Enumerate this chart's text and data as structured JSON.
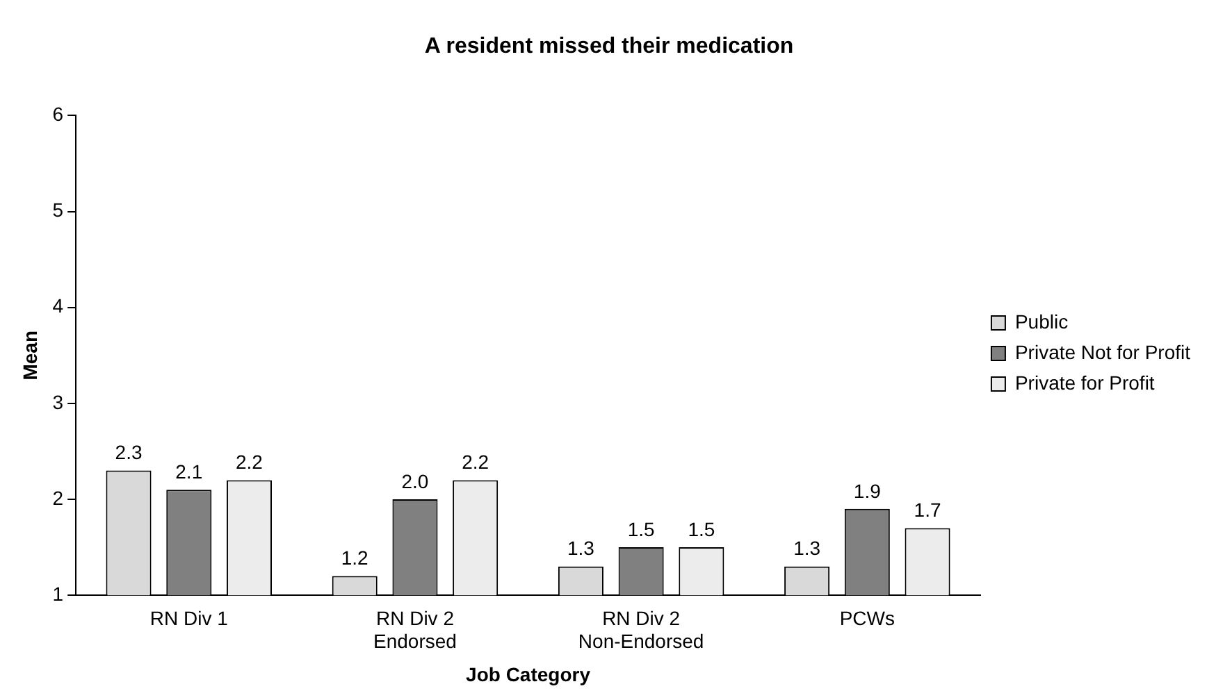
{
  "chart_data": {
    "type": "bar",
    "title": "A resident missed their medication",
    "xlabel": "Job Category",
    "ylabel": "Mean",
    "categories": [
      "RN Div 1",
      "RN Div 2 Endorsed",
      "RN Div 2 Non-Endorsed",
      "PCWs"
    ],
    "series": [
      {
        "name": "Public",
        "color": "#d9d9d9",
        "values": [
          2.3,
          1.2,
          1.3,
          1.3
        ],
        "value_labels": [
          "2.3",
          "1.2",
          "1.3",
          "1.3"
        ]
      },
      {
        "name": "Private Not for Profit",
        "color": "#808080",
        "values": [
          2.1,
          2.0,
          1.5,
          1.9
        ],
        "value_labels": [
          "2.1",
          "2.0",
          "1.5",
          "1.9"
        ]
      },
      {
        "name": "Private for Profit",
        "color": "#ececec",
        "values": [
          2.2,
          2.2,
          1.5,
          1.7
        ],
        "value_labels": [
          "2.2",
          "2.2",
          "1.5",
          "1.7"
        ]
      }
    ],
    "ylim": [
      1,
      6
    ],
    "yticks": [
      1,
      2,
      3,
      4,
      5,
      6
    ],
    "grid": false,
    "legend": "right"
  }
}
